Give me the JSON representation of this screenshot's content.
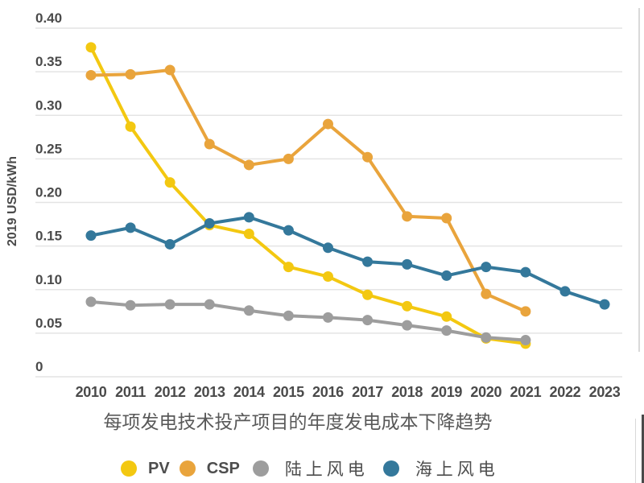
{
  "page": {
    "background": "#ffffff",
    "edge_color_light": "#dcdcdc",
    "edge_color_dark": "#4a4a4a"
  },
  "chart_data": {
    "type": "line",
    "title": "每项发电技术投产项目的年度发电成本下降趋势",
    "ylabel": "2019 USD/kWh",
    "xlabel": "",
    "ylim": [
      0,
      0.4
    ],
    "grid": "horizontal",
    "grid_color": "#e4e4e4",
    "tick_color": "#4a4a4a",
    "legend_position": "bottom",
    "y_ticks": [
      "0.40",
      "0.35",
      "0.30",
      "0.25",
      "0.20",
      "0.15",
      "0.10",
      "0.05",
      "0"
    ],
    "x": [
      2010,
      2011,
      2012,
      2013,
      2014,
      2015,
      2016,
      2017,
      2018,
      2019,
      2020,
      2021,
      2022,
      2023
    ],
    "series": [
      {
        "id": "pv",
        "name": "PV",
        "color": "#f3c811",
        "values": [
          0.378,
          0.287,
          0.223,
          0.174,
          0.164,
          0.126,
          0.115,
          0.094,
          0.081,
          0.069,
          0.044,
          0.038,
          null,
          null
        ]
      },
      {
        "id": "csp",
        "name": "CSP",
        "color": "#e9a43c",
        "values": [
          0.346,
          0.347,
          0.352,
          0.267,
          0.243,
          0.25,
          0.29,
          0.252,
          0.184,
          0.182,
          0.095,
          0.075,
          null,
          null
        ]
      },
      {
        "id": "onshore-wind",
        "name": "陆上风电",
        "color": "#9d9d9d",
        "values": [
          0.086,
          0.082,
          0.083,
          0.083,
          0.076,
          0.07,
          0.068,
          0.065,
          0.059,
          0.053,
          0.045,
          0.042,
          null,
          null
        ]
      },
      {
        "id": "offshore-wind",
        "name": "海上风电",
        "color": "#34789b",
        "values": [
          0.162,
          0.171,
          0.152,
          0.176,
          0.183,
          0.168,
          0.148,
          0.132,
          0.129,
          0.116,
          0.126,
          0.12,
          0.098,
          0.083
        ]
      }
    ]
  }
}
